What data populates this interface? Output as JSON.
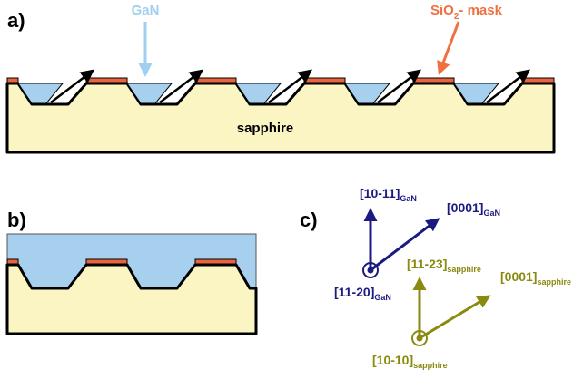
{
  "panels": {
    "a": {
      "label": "a)",
      "gan_label": "GaN",
      "mask_label": {
        "main": "SiO",
        "sub": "2",
        "rest": "- mask"
      },
      "substrate_label": "sapphire"
    },
    "b": {
      "label": "b)"
    },
    "c": {
      "label": "c)",
      "directions": [
        {
          "main": "[10-11]",
          "sub": "GaN"
        },
        {
          "main": "[0001]",
          "sub": "GaN"
        },
        {
          "main": "[11-20]",
          "sub": "GaN"
        },
        {
          "main": "[11-23]",
          "sub": "sapphire"
        },
        {
          "main": "[0001]",
          "sub": "sapphire"
        },
        {
          "main": "[10-10]",
          "sub": "sapphire"
        }
      ]
    }
  }
}
